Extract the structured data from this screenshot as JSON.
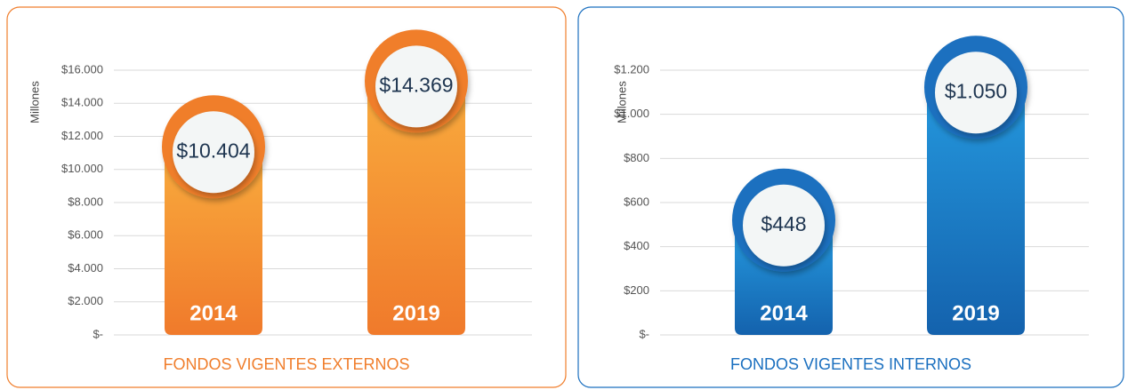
{
  "chart_data": [
    {
      "type": "bar",
      "title": "FONDOS VIGENTES EXTERNOS",
      "ylabel": "Millones",
      "categories": [
        "2014",
        "2019"
      ],
      "values": [
        10404,
        14369
      ],
      "value_labels": [
        "$10.404",
        "$14.369"
      ],
      "color": "#f07e2c",
      "ylim": [
        0,
        16000
      ],
      "yticks": [
        {
          "value": 0,
          "label": "$-"
        },
        {
          "value": 2000,
          "label": "$2.000"
        },
        {
          "value": 4000,
          "label": "$4.000"
        },
        {
          "value": 6000,
          "label": "$6.000"
        },
        {
          "value": 8000,
          "label": "$8.000"
        },
        {
          "value": 10000,
          "label": "$10.000"
        },
        {
          "value": 12000,
          "label": "$12.000"
        },
        {
          "value": 14000,
          "label": "$14.000"
        },
        {
          "value": 16000,
          "label": "$16.000"
        }
      ],
      "grid": true
    },
    {
      "type": "bar",
      "title": "FONDOS VIGENTES INTERNOS",
      "ylabel": "Millones",
      "categories": [
        "2014",
        "2019"
      ],
      "values": [
        448,
        1050
      ],
      "value_labels": [
        "$448",
        "$1.050"
      ],
      "color": "#1a6fbf",
      "ylim": [
        0,
        1200
      ],
      "yticks": [
        {
          "value": 0,
          "label": "$-"
        },
        {
          "value": 200,
          "label": "$200"
        },
        {
          "value": 400,
          "label": "$400"
        },
        {
          "value": 600,
          "label": "$600"
        },
        {
          "value": 800,
          "label": "$800"
        },
        {
          "value": 1000,
          "label": "$1.000"
        },
        {
          "value": 1200,
          "label": "$1.200"
        }
      ],
      "grid": true
    }
  ]
}
